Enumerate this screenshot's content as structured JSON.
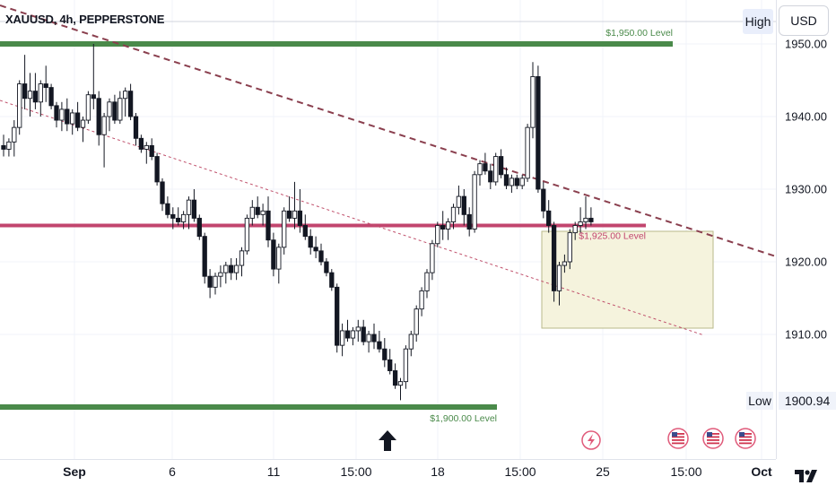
{
  "chart_header": {
    "title": "XAUUSD, 4h, PEPPERSTONE"
  },
  "toolbar": {
    "high_label": "High",
    "currency_label": "USD"
  },
  "price_scale": {
    "labels": [
      "1950.00",
      "1940.00",
      "1930.00",
      "1920.00",
      "1910.00"
    ],
    "low_label": "Low",
    "low_value": "1900.94"
  },
  "time_scale": {
    "labels": [
      "Sep",
      "6",
      "11",
      "15:00",
      "18",
      "15:00",
      "25",
      "15:00",
      "Oct"
    ]
  },
  "annotations": {
    "level_1950": "$1,950.00 Level",
    "level_1925": "$1,925.00 Level",
    "level_1900": "$1,900.00 Level"
  },
  "colors": {
    "green_level": "#4a8a4a",
    "pink_level": "#c2456e",
    "trend_line": "#8a3f4e",
    "candle_up": "#ffffff",
    "candle_down": "#131722",
    "zone_fill": "#f5f3dd"
  },
  "icons": [
    "arrow-up-icon",
    "lightning-icon",
    "us-flag-icon",
    "us-flag-icon",
    "us-flag-icon"
  ],
  "chart_data": {
    "type": "candlestick",
    "symbol": "XAUUSD",
    "timeframe": "4h",
    "ylim": [
      1897,
      1957
    ],
    "y_ticks": [
      1950,
      1940,
      1930,
      1920,
      1910
    ],
    "horizontal_levels": [
      1950,
      1925,
      1900
    ],
    "ohlc": [
      [
        1936.0,
        1937.5,
        1934.5,
        1935.5
      ],
      [
        1935.5,
        1937.0,
        1934.5,
        1936.5
      ],
      [
        1936.5,
        1939.5,
        1934.5,
        1938.5
      ],
      [
        1938.5,
        1945.0,
        1937.5,
        1944.5
      ],
      [
        1944.5,
        1948.5,
        1941.0,
        1942.5
      ],
      [
        1942.5,
        1946.0,
        1940.0,
        1943.5
      ],
      [
        1943.5,
        1946.0,
        1941.0,
        1942.0
      ],
      [
        1942.0,
        1945.0,
        1940.0,
        1944.5
      ],
      [
        1944.5,
        1947.0,
        1942.0,
        1944.0
      ],
      [
        1944.0,
        1944.5,
        1941.0,
        1941.5
      ],
      [
        1941.5,
        1942.0,
        1938.5,
        1939.5
      ],
      [
        1939.5,
        1942.0,
        1938.0,
        1941.0
      ],
      [
        1941.0,
        1942.5,
        1938.0,
        1939.0
      ],
      [
        1939.0,
        1941.0,
        1937.5,
        1940.5
      ],
      [
        1940.5,
        1942.0,
        1938.0,
        1938.5
      ],
      [
        1938.5,
        1940.0,
        1936.5,
        1939.5
      ],
      [
        1939.5,
        1943.5,
        1939.0,
        1943.0
      ],
      [
        1943.0,
        1950.0,
        1941.0,
        1942.5
      ],
      [
        1942.5,
        1943.5,
        1936.0,
        1937.5
      ],
      [
        1937.5,
        1940.5,
        1933.0,
        1940.0
      ],
      [
        1940.0,
        1942.5,
        1938.0,
        1942.0
      ],
      [
        1942.0,
        1943.0,
        1939.0,
        1939.5
      ],
      [
        1939.5,
        1943.5,
        1939.0,
        1942.5
      ],
      [
        1942.5,
        1944.0,
        1940.0,
        1943.5
      ],
      [
        1943.5,
        1944.5,
        1939.5,
        1940.0
      ],
      [
        1940.0,
        1940.5,
        1936.0,
        1937.0
      ],
      [
        1937.0,
        1937.5,
        1935.0,
        1935.5
      ],
      [
        1935.5,
        1936.5,
        1933.5,
        1936.0
      ],
      [
        1936.0,
        1937.0,
        1934.0,
        1934.5
      ],
      [
        1934.5,
        1935.0,
        1930.5,
        1931.0
      ],
      [
        1931.0,
        1931.5,
        1927.0,
        1928.0
      ],
      [
        1928.0,
        1929.0,
        1926.0,
        1926.5
      ],
      [
        1926.5,
        1927.5,
        1924.5,
        1926.0
      ],
      [
        1926.0,
        1927.5,
        1925.0,
        1925.5
      ],
      [
        1925.5,
        1927.0,
        1924.5,
        1926.5
      ],
      [
        1926.5,
        1929.0,
        1924.5,
        1928.5
      ],
      [
        1928.5,
        1930.0,
        1925.5,
        1926.0
      ],
      [
        1926.0,
        1926.5,
        1923.0,
        1923.5
      ],
      [
        1923.5,
        1924.0,
        1917.0,
        1918.0
      ],
      [
        1918.0,
        1919.0,
        1915.0,
        1916.5
      ],
      [
        1916.5,
        1918.5,
        1915.5,
        1918.0
      ],
      [
        1918.0,
        1919.5,
        1916.5,
        1918.5
      ],
      [
        1918.5,
        1920.0,
        1917.0,
        1919.5
      ],
      [
        1919.5,
        1920.5,
        1917.5,
        1918.5
      ],
      [
        1918.5,
        1920.5,
        1917.5,
        1919.5
      ],
      [
        1919.5,
        1922.0,
        1918.0,
        1921.5
      ],
      [
        1921.5,
        1926.5,
        1921.0,
        1926.0
      ],
      [
        1926.0,
        1928.5,
        1925.0,
        1927.5
      ],
      [
        1927.5,
        1929.0,
        1926.0,
        1926.5
      ],
      [
        1926.5,
        1928.0,
        1925.0,
        1927.0
      ],
      [
        1927.0,
        1929.0,
        1922.0,
        1923.0
      ],
      [
        1923.0,
        1924.0,
        1918.0,
        1919.0
      ],
      [
        1919.0,
        1922.5,
        1917.0,
        1922.0
      ],
      [
        1922.0,
        1927.5,
        1921.0,
        1927.0
      ],
      [
        1927.0,
        1929.0,
        1925.5,
        1926.0
      ],
      [
        1926.0,
        1931.0,
        1924.5,
        1927.0
      ],
      [
        1927.0,
        1930.0,
        1924.0,
        1925.0
      ],
      [
        1925.0,
        1926.5,
        1923.0,
        1923.5
      ],
      [
        1923.5,
        1924.5,
        1921.0,
        1922.0
      ],
      [
        1922.0,
        1923.5,
        1920.5,
        1921.5
      ],
      [
        1921.5,
        1922.5,
        1919.5,
        1920.0
      ],
      [
        1920.0,
        1920.5,
        1918.0,
        1918.5
      ],
      [
        1918.5,
        1919.0,
        1916.0,
        1916.5
      ],
      [
        1916.5,
        1917.0,
        1907.5,
        1908.5
      ],
      [
        1908.5,
        1911.5,
        1907.0,
        1910.5
      ],
      [
        1910.5,
        1912.0,
        1909.0,
        1909.5
      ],
      [
        1909.5,
        1911.0,
        1908.5,
        1910.5
      ],
      [
        1910.5,
        1912.0,
        1909.0,
        1911.0
      ],
      [
        1911.0,
        1912.0,
        1908.5,
        1909.0
      ],
      [
        1909.0,
        1910.5,
        1907.5,
        1910.0
      ],
      [
        1910.0,
        1911.5,
        1908.0,
        1909.0
      ],
      [
        1909.0,
        1910.5,
        1907.5,
        1908.0
      ],
      [
        1908.0,
        1909.5,
        1905.5,
        1906.5
      ],
      [
        1906.5,
        1908.0,
        1904.5,
        1905.0
      ],
      [
        1905.0,
        1906.0,
        1902.5,
        1903.0
      ],
      [
        1903.0,
        1904.0,
        1900.94,
        1903.5
      ],
      [
        1903.5,
        1908.5,
        1902.5,
        1908.0
      ],
      [
        1908.0,
        1910.5,
        1907.0,
        1910.0
      ],
      [
        1910.0,
        1914.0,
        1909.0,
        1913.5
      ],
      [
        1913.5,
        1916.5,
        1912.5,
        1916.0
      ],
      [
        1916.0,
        1919.0,
        1915.0,
        1918.5
      ],
      [
        1918.5,
        1923.0,
        1917.5,
        1922.5
      ],
      [
        1922.5,
        1925.5,
        1922.0,
        1925.0
      ],
      [
        1925.0,
        1927.0,
        1923.0,
        1924.5
      ],
      [
        1924.5,
        1926.0,
        1923.0,
        1925.5
      ],
      [
        1925.5,
        1928.0,
        1924.5,
        1927.5
      ],
      [
        1927.5,
        1930.5,
        1926.5,
        1929.0
      ],
      [
        1929.0,
        1930.0,
        1925.0,
        1926.5
      ],
      [
        1926.5,
        1927.5,
        1923.5,
        1924.5
      ],
      [
        1924.5,
        1932.5,
        1924.0,
        1932.0
      ],
      [
        1932.0,
        1934.0,
        1930.5,
        1933.5
      ],
      [
        1933.5,
        1935.0,
        1932.0,
        1932.5
      ],
      [
        1932.5,
        1933.5,
        1930.0,
        1931.0
      ],
      [
        1931.0,
        1935.0,
        1930.5,
        1934.5
      ],
      [
        1934.5,
        1935.5,
        1931.5,
        1932.0
      ],
      [
        1932.0,
        1933.0,
        1930.0,
        1930.5
      ],
      [
        1930.5,
        1932.0,
        1929.5,
        1931.5
      ],
      [
        1931.5,
        1932.0,
        1930.0,
        1930.5
      ],
      [
        1930.5,
        1932.0,
        1930.0,
        1931.5
      ],
      [
        1931.5,
        1939.0,
        1931.0,
        1938.5
      ],
      [
        1938.5,
        1947.5,
        1937.0,
        1945.5
      ],
      [
        1945.5,
        1947.0,
        1929.5,
        1930.0
      ],
      [
        1930.0,
        1931.0,
        1926.0,
        1927.0
      ],
      [
        1927.0,
        1928.5,
        1924.0,
        1925.0
      ],
      [
        1925.0,
        1925.5,
        1914.5,
        1916.0
      ],
      [
        1916.0,
        1920.0,
        1914.0,
        1919.5
      ],
      [
        1919.5,
        1921.0,
        1918.5,
        1920.0
      ],
      [
        1920.0,
        1924.5,
        1919.0,
        1924.0
      ],
      [
        1924.0,
        1925.5,
        1923.0,
        1925.0
      ],
      [
        1925.0,
        1927.5,
        1924.0,
        1925.5
      ],
      [
        1925.5,
        1929.0,
        1924.5,
        1926.0
      ],
      [
        1926.0,
        1927.5,
        1925.0,
        1925.5
      ]
    ]
  }
}
